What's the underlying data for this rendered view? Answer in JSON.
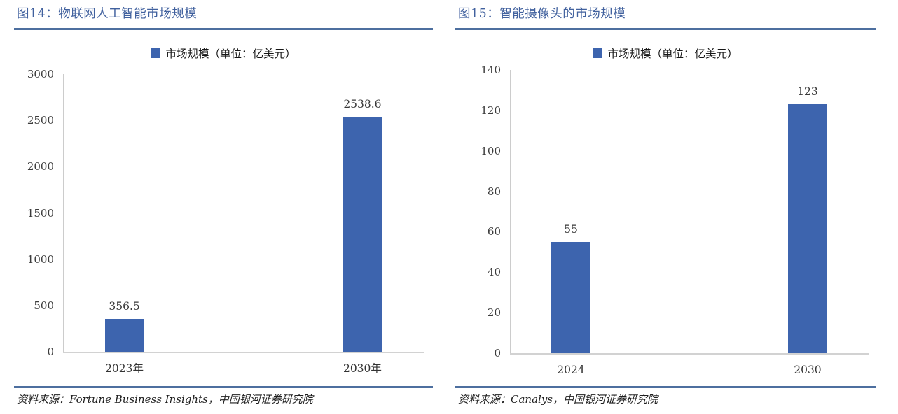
{
  "page": {
    "background": "#ffffff",
    "rule_color": "#4d6f9f",
    "title_color": "#41619e"
  },
  "chart_data": [
    {
      "type": "bar",
      "title": "图14：物联网人工智能市场规模",
      "legend_label": "市场规模（单位：亿美元）",
      "categories": [
        "2023年",
        "2030年"
      ],
      "values": [
        356.5,
        2538.6
      ],
      "ylim": [
        0,
        3000
      ],
      "yticks": [
        0,
        500,
        1000,
        1500,
        2000,
        2500,
        3000
      ],
      "xlabel": "",
      "ylabel": "",
      "grid": false,
      "legend_position": "top-center",
      "bar_color": "#3d64ae",
      "source": "资料来源：Fortune Business Insights，中国银河证券研究院"
    },
    {
      "type": "bar",
      "title": "图15：智能摄像头的市场规模",
      "legend_label": "市场规模（单位：亿美元）",
      "categories": [
        "2024",
        "2030"
      ],
      "values": [
        55,
        123
      ],
      "ylim": [
        0,
        140
      ],
      "yticks": [
        0,
        20,
        40,
        60,
        80,
        100,
        120,
        140
      ],
      "xlabel": "",
      "ylabel": "",
      "grid": false,
      "legend_position": "top-center",
      "bar_color": "#3d64ae",
      "source": "资料来源：Canalys，中国银河证券研究院"
    }
  ]
}
